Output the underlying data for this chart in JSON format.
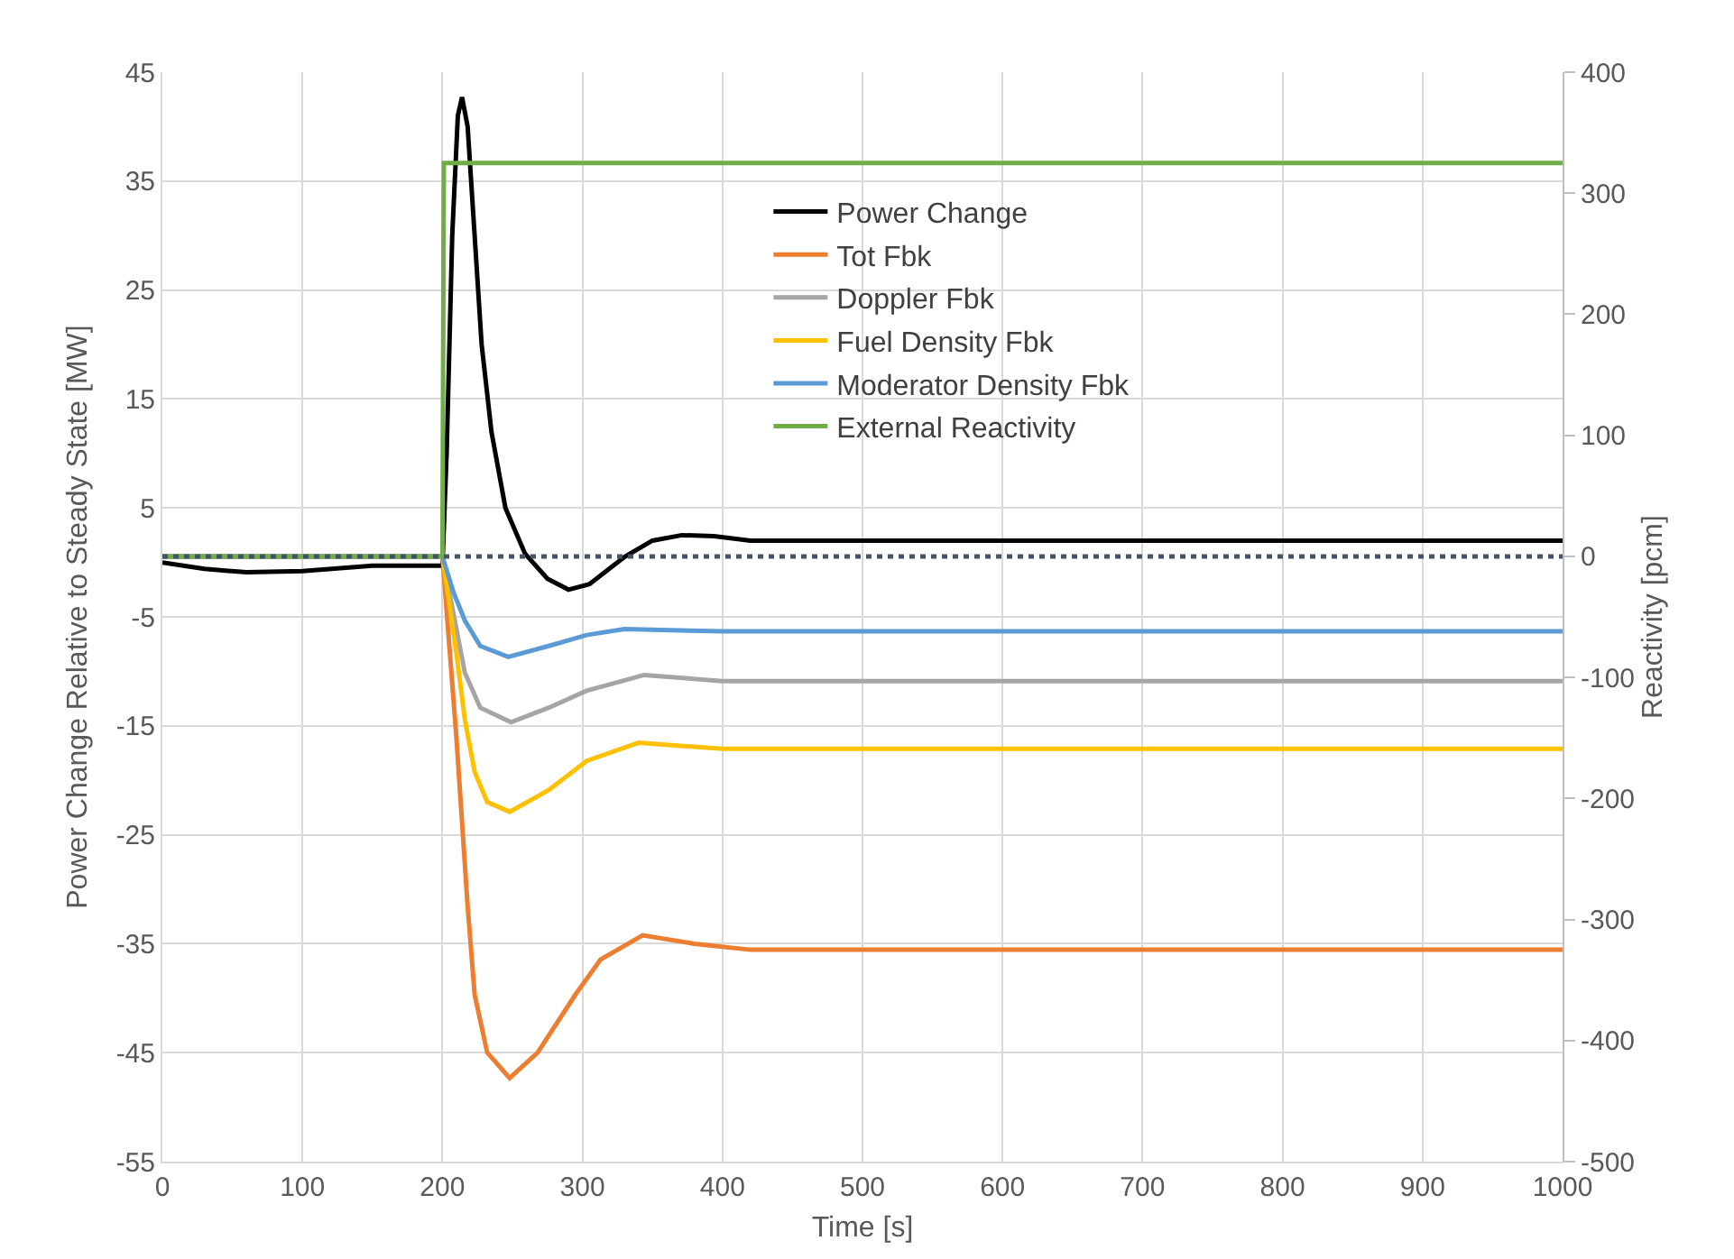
{
  "chart_data": {
    "type": "line",
    "xlabel": "Time [s]",
    "ylabel": "Power Change Relative to Steady State [MW]",
    "y2label": "Reactivity [pcm]",
    "xlim": [
      0,
      1000
    ],
    "xticks": [
      0,
      100,
      200,
      300,
      400,
      500,
      600,
      700,
      800,
      900,
      1000
    ],
    "ylim": [
      -55,
      45
    ],
    "yticks": [
      -55,
      -45,
      -35,
      -25,
      -15,
      -5,
      5,
      15,
      25,
      35,
      45
    ],
    "y2lim": [
      -500,
      400
    ],
    "y2ticks": [
      -500,
      -400,
      -300,
      -200,
      -100,
      0,
      100,
      200,
      300,
      400
    ],
    "grid": true,
    "legend": "top",
    "line_style": "solid",
    "marker": "none",
    "ref_lines": [
      {
        "axis": "y2",
        "value": 0,
        "color": "#44546a",
        "line_style": "dotted"
      }
    ],
    "series": [
      {
        "name": "Power Change",
        "color": "#000000",
        "x": [
          0,
          30,
          60,
          100,
          150,
          200,
          203,
          207,
          211,
          214,
          218,
          223,
          228,
          235,
          245,
          259,
          275,
          290,
          305,
          330,
          350,
          371,
          394,
          420,
          1000
        ],
        "values": [
          0,
          -0.6,
          -0.9,
          -0.8,
          -0.3,
          -0.3,
          10,
          30,
          41,
          42.7,
          40,
          30,
          20,
          12,
          5,
          0.8,
          -1.5,
          -2.5,
          -2,
          0.5,
          2,
          2.5,
          2.4,
          2,
          2
        ]
      },
      {
        "name": "Tot Fbk",
        "color": "#ed7d31",
        "axis": "y2",
        "x": [
          0,
          200,
          210,
          218,
          223,
          232,
          248,
          268,
          295,
          313,
          343,
          380,
          420,
          1000
        ],
        "values": [
          0,
          0,
          -150,
          -289,
          -362,
          -410,
          -431,
          -410,
          -362,
          -333,
          -313,
          -320,
          -325,
          -325
        ]
      },
      {
        "name": "Doppler Fbk",
        "color": "#a5a5a5",
        "axis": "y2",
        "x": [
          0,
          200,
          210,
          216,
          227,
          249,
          276,
          303,
          344,
          400,
          1000
        ],
        "values": [
          0,
          0,
          -60,
          -96,
          -125,
          -137,
          -125,
          -111,
          -98,
          -103,
          -103
        ]
      },
      {
        "name": "Fuel Density Fbk",
        "color": "#ffc000",
        "axis": "y2",
        "x": [
          0,
          200,
          210,
          216,
          223,
          232,
          248,
          276,
          303,
          340,
          400,
          1000
        ],
        "values": [
          0,
          0,
          -80,
          -135,
          -178,
          -203,
          -211,
          -193,
          -169,
          -154,
          -159,
          -159
        ]
      },
      {
        "name": "Moderator Density Fbk",
        "color": "#5b9bd5",
        "axis": "y2",
        "x": [
          0,
          200,
          208,
          216,
          227,
          247,
          276,
          303,
          330,
          400,
          1000
        ],
        "values": [
          0,
          0,
          -30,
          -53,
          -74,
          -83,
          -74,
          -65,
          -60,
          -62,
          -62
        ]
      },
      {
        "name": "External Reactivity",
        "color": "#70ad47",
        "axis": "y2",
        "x": [
          0,
          200,
          201,
          1000
        ],
        "values": [
          0,
          0,
          325,
          325
        ]
      }
    ]
  }
}
